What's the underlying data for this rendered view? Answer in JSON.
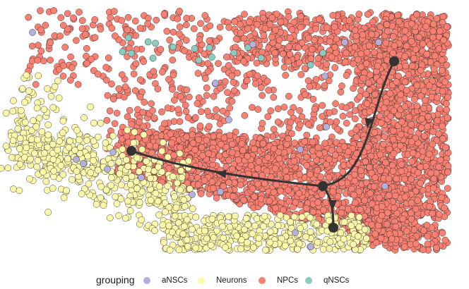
{
  "chart_data": {
    "type": "scatter",
    "title": "",
    "xlabel": "",
    "ylabel": "",
    "axes_visible": false,
    "grid": false,
    "legend_position": "bottom",
    "legend_title": "grouping",
    "series": [
      {
        "name": "aNSCs",
        "color": "#b3b1dc"
      },
      {
        "name": "Neurons",
        "color": "#fdf8aa"
      },
      {
        "name": "NPCs",
        "color": "#fa8072"
      },
      {
        "name": "qNSCs",
        "color": "#8ccbbf"
      }
    ],
    "trajectory": {
      "color": "#333333",
      "node_count": 4,
      "edge_count": 3
    }
  }
}
